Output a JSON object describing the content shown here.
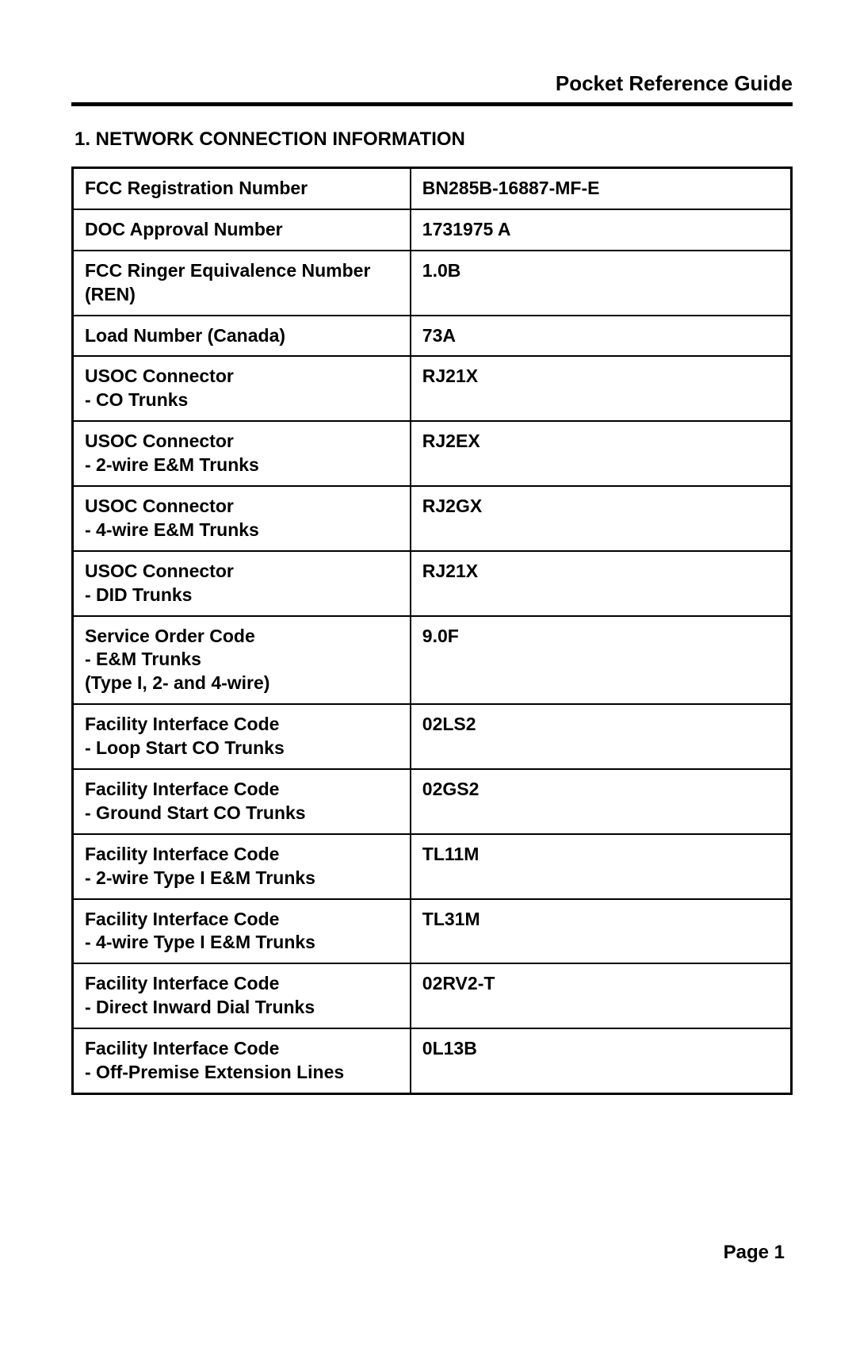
{
  "header": {
    "title": "Pocket Reference Guide"
  },
  "section": {
    "title": "1. NETWORK CONNECTION INFORMATION"
  },
  "table": {
    "rows": [
      {
        "label": "FCC Registration Number",
        "value": "BN285B-16887-MF-E"
      },
      {
        "label": "DOC Approval Number",
        "value": "1731975 A"
      },
      {
        "label": "FCC Ringer Equivalence Number (REN)",
        "value": "1.0B"
      },
      {
        "label": "Load Number (Canada)",
        "value": "73A"
      },
      {
        "label": "USOC Connector\n- CO Trunks",
        "value": "RJ21X"
      },
      {
        "label": "USOC Connector\n- 2-wire E&M Trunks",
        "value": "RJ2EX"
      },
      {
        "label": "USOC Connector\n- 4-wire E&M Trunks",
        "value": "RJ2GX"
      },
      {
        "label": "USOC Connector\n- DID Trunks",
        "value": "RJ21X"
      },
      {
        "label": "Service Order Code\n- E&M Trunks\n(Type I, 2- and 4-wire)",
        "value": "9.0F"
      },
      {
        "label": "Facility Interface Code\n- Loop Start CO Trunks",
        "value": "02LS2"
      },
      {
        "label": "Facility Interface Code\n- Ground Start CO Trunks",
        "value": "02GS2"
      },
      {
        "label": "Facility Interface Code\n- 2-wire Type I E&M Trunks",
        "value": "TL11M"
      },
      {
        "label": "Facility Interface Code\n- 4-wire Type I E&M Trunks",
        "value": "TL31M"
      },
      {
        "label": "Facility Interface Code\n- Direct Inward Dial Trunks",
        "value": "02RV2-T"
      },
      {
        "label": "Facility Interface Code\n- Off-Premise Extension Lines",
        "value": "0L13B"
      }
    ]
  },
  "footer": {
    "page_number": "Page 1"
  },
  "styling": {
    "background_color": "#ffffff",
    "text_color": "#000000",
    "border_color": "#000000",
    "header_fontsize": 26,
    "section_fontsize": 24,
    "cell_fontsize": 23,
    "footer_fontsize": 24,
    "outer_border_width": 3,
    "inner_border_width": 2,
    "rule_width": 5,
    "label_col_width_pct": 47,
    "value_col_width_pct": 53
  }
}
